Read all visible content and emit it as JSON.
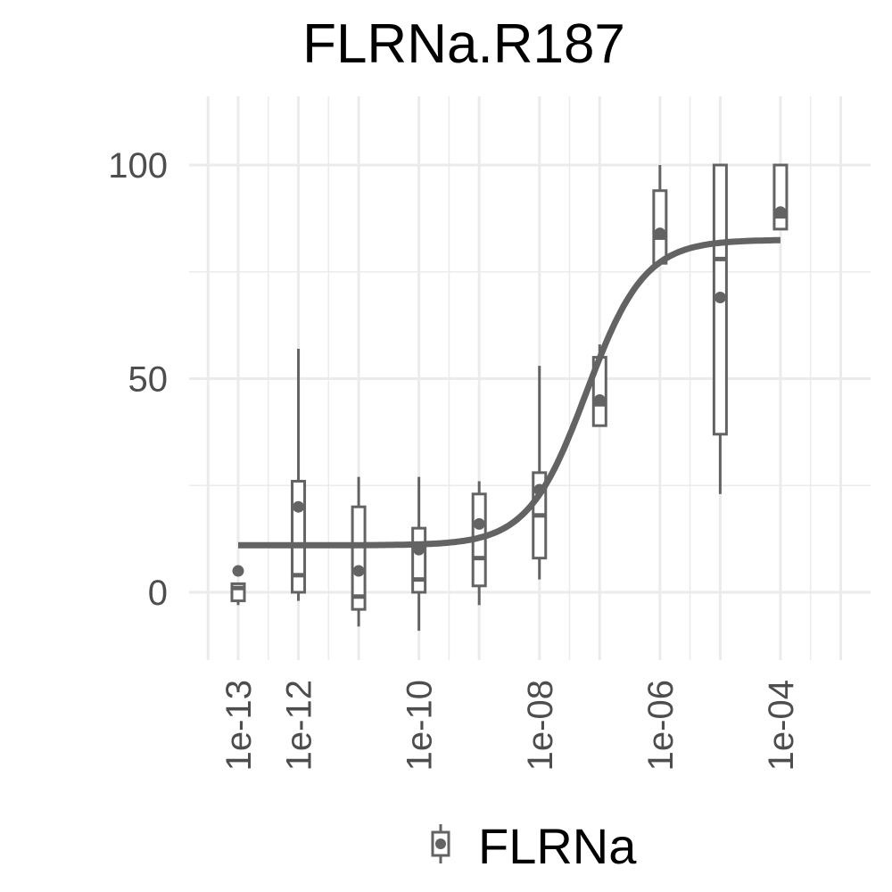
{
  "chart_data": {
    "type": "boxplot",
    "title": "FLRNa.R187",
    "xlabel": "",
    "ylabel": "",
    "x_scale": "log10",
    "x_tick_labels": [
      "1e-13",
      "1e-12",
      "1e-10",
      "1e-08",
      "1e-06",
      "1e-04"
    ],
    "y_tick_labels": [
      "0",
      "50",
      "100"
    ],
    "ylim": [
      -15,
      115
    ],
    "grid": true,
    "legend_position": "bottom",
    "color": "#636363",
    "series": [
      {
        "name": "FLRNa",
        "boxes": [
          {
            "x": 1e-13,
            "ymin": -3,
            "q1": -2,
            "median": 1,
            "q3": 2,
            "ymax": 2,
            "mean": 5
          },
          {
            "x": 1e-12,
            "ymin": -2,
            "q1": 0,
            "median": 4,
            "q3": 26,
            "ymax": 57,
            "mean": 20
          },
          {
            "x": 1e-11,
            "ymin": -8,
            "q1": -4,
            "median": -1,
            "q3": 20,
            "ymax": 27,
            "mean": 5
          },
          {
            "x": 1e-10,
            "ymin": -9,
            "q1": 0,
            "median": 3,
            "q3": 15,
            "ymax": 27,
            "mean": 10
          },
          {
            "x": 1e-09,
            "ymin": -3,
            "q1": 1.5,
            "median": 8,
            "q3": 23,
            "ymax": 26,
            "mean": 16
          },
          {
            "x": 1e-08,
            "ymin": 3,
            "q1": 8,
            "median": 18,
            "q3": 28,
            "ymax": 53,
            "mean": 24
          },
          {
            "x": 1e-07,
            "ymin": 39,
            "q1": 39,
            "median": 44,
            "q3": 55,
            "ymax": 58,
            "mean": 45
          },
          {
            "x": 1e-06,
            "ymin": 77,
            "q1": 77,
            "median": 83,
            "q3": 94,
            "ymax": 100,
            "mean": 84
          },
          {
            "x": 1e-05,
            "ymin": 23,
            "q1": 37,
            "median": 78,
            "q3": 100,
            "ymax": 100,
            "mean": 69
          },
          {
            "x": 0.0001,
            "ymin": 85,
            "q1": 85,
            "median": 88,
            "q3": 100,
            "ymax": 100,
            "mean": 89
          }
        ],
        "fit_curve": {
          "model": "4-parameter logistic",
          "bottom": 11,
          "top": 82.5,
          "ec50": 6e-08,
          "hill_slope": 0.9,
          "x_range": [
            1e-13,
            0.0001
          ]
        }
      }
    ]
  }
}
